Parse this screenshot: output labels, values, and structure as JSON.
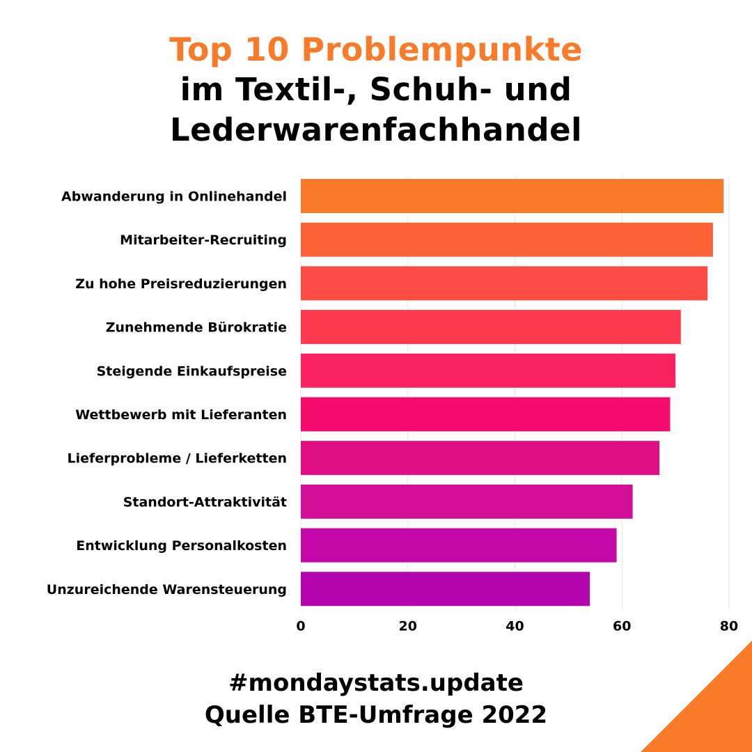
{
  "header": {
    "title_line1": "Top 10 Problempunkte",
    "title_line2": "im Textil-, Schuh- und",
    "title_line3": "Lederwarenfachhandel"
  },
  "footer": {
    "line1": "#mondaystats.update",
    "line2": "Quelle BTE-Umfrage 2022"
  },
  "colors": {
    "accent": "#f97a28",
    "text": "#000000",
    "grid": "#e6e6e6",
    "bars": [
      "#f97a28",
      "#fb6336",
      "#fc4d44",
      "#fd3a50",
      "#fb235f",
      "#f40c6c",
      "#e00e83",
      "#d30f98",
      "#c509a8",
      "#b304ae"
    ]
  },
  "chart_data": {
    "type": "bar",
    "orientation": "horizontal",
    "categories": [
      "Abwanderung in Onlinehandel",
      "Mitarbeiter-Recruiting",
      "Zu hohe Preisreduzierungen",
      "Zunehmende Bürokratie",
      "Steigende Einkaufspreise",
      "Wettbewerb mit Lieferanten",
      "Lieferprobleme / Lieferketten",
      "Standort-Attraktivität",
      "Entwicklung Personalkosten",
      "Unzureichende Warensteuerung"
    ],
    "values": [
      79,
      77,
      76,
      71,
      70,
      69,
      67,
      62,
      59,
      54
    ],
    "xlim": [
      0,
      80
    ],
    "xticks": [
      "0",
      "20",
      "40",
      "60",
      "80"
    ],
    "grid": true,
    "legend": "none"
  }
}
